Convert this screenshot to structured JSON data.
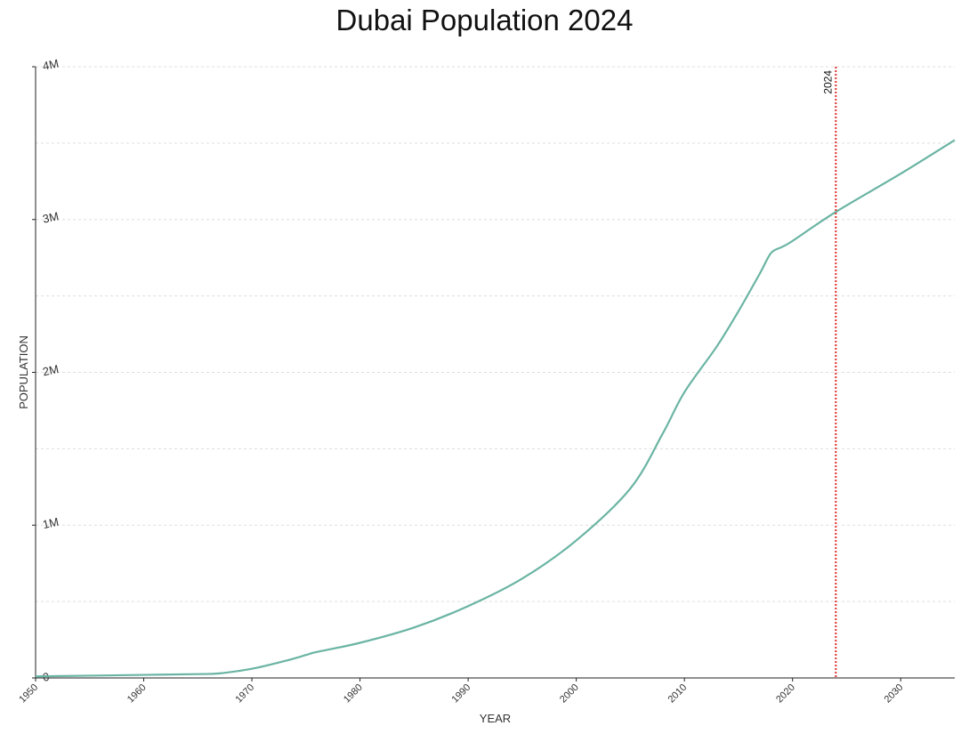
{
  "chart_data": {
    "type": "line",
    "title": "Dubai Population 2024",
    "xlabel": "YEAR",
    "ylabel": "POPULATION",
    "xlim": [
      1950,
      2035
    ],
    "ylim": [
      0,
      4000000
    ],
    "x_ticks": [
      {
        "value": 1950,
        "label": "1950"
      },
      {
        "value": 1960,
        "label": "1960"
      },
      {
        "value": 1970,
        "label": "1970"
      },
      {
        "value": 1980,
        "label": "1980"
      },
      {
        "value": 1990,
        "label": "1990"
      },
      {
        "value": 2000,
        "label": "2000"
      },
      {
        "value": 2010,
        "label": "2010"
      },
      {
        "value": 2020,
        "label": "2020"
      },
      {
        "value": 2030,
        "label": "2030"
      }
    ],
    "y_ticks": [
      {
        "value": 0,
        "label": "0"
      },
      {
        "value": 1000000,
        "label": "1M"
      },
      {
        "value": 2000000,
        "label": "2M"
      },
      {
        "value": 3000000,
        "label": "3M"
      },
      {
        "value": 4000000,
        "label": "4M"
      }
    ],
    "y_gridlines": [
      500000,
      1000000,
      1500000,
      2000000,
      2500000,
      3000000,
      3500000,
      4000000
    ],
    "grid": true,
    "line_color": "#6ab4a3",
    "marker": {
      "value": 2024,
      "label": "2024",
      "color": "#e03030"
    },
    "series": [
      {
        "x": [
          1950,
          1955,
          1960,
          1965,
          1967,
          1970,
          1973,
          1975,
          1976,
          1980,
          1985,
          1990,
          1995,
          2000,
          2005,
          2008,
          2010,
          2013,
          2015,
          2017,
          2018,
          2019,
          2020,
          2024,
          2030,
          2035
        ],
        "y": [
          10000,
          15000,
          20000,
          25000,
          30000,
          60000,
          110000,
          150000,
          170000,
          230000,
          330000,
          470000,
          650000,
          900000,
          1240000,
          1600000,
          1870000,
          2170000,
          2400000,
          2650000,
          2780000,
          2820000,
          2860000,
          3050000,
          3300000,
          3520000
        ]
      }
    ]
  }
}
